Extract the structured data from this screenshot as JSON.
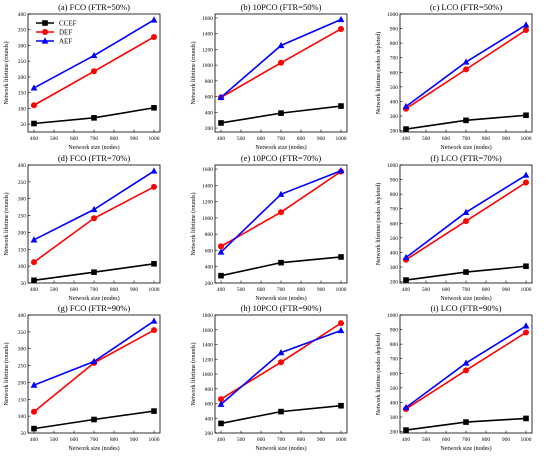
{
  "legend": {
    "entries": [
      {
        "name": "CCEF",
        "color": "#000000",
        "marker": "square"
      },
      {
        "name": "DEF",
        "color": "#ff0000",
        "marker": "circle"
      },
      {
        "name": "AEF",
        "color": "#0000ff",
        "marker": "triangle"
      }
    ],
    "placement": "top-left of panel (a)"
  },
  "chart_data": [
    {
      "type": "line",
      "title": "(a) FCO (FTR=50%)",
      "xlabel": "Network size (nodes)",
      "ylabel": "Network lifetime (rounds)",
      "x": [
        400,
        700,
        1000
      ],
      "xticks": [
        400,
        500,
        600,
        700,
        800,
        900,
        1000
      ],
      "ylim": [
        25,
        400
      ],
      "yticks": [
        50,
        100,
        150,
        200,
        250,
        300,
        350,
        400
      ],
      "series": [
        {
          "name": "CCEF",
          "values": [
            52,
            70,
            102
          ]
        },
        {
          "name": "DEF",
          "values": [
            110,
            218,
            327
          ]
        },
        {
          "name": "AEF",
          "values": [
            165,
            268,
            381
          ]
        }
      ]
    },
    {
      "type": "line",
      "title": "(b) 10PCO (FTR=50%)",
      "xlabel": "Network size (nodes)",
      "ylabel": "Network lifetime (rounds)",
      "x": [
        400,
        700,
        1000
      ],
      "xticks": [
        400,
        500,
        600,
        700,
        800,
        900,
        1000
      ],
      "ylim": [
        150,
        1650
      ],
      "yticks": [
        200,
        400,
        600,
        800,
        1000,
        1200,
        1400,
        1600
      ],
      "series": [
        {
          "name": "CCEF",
          "values": [
            265,
            390,
            480
          ]
        },
        {
          "name": "DEF",
          "values": [
            590,
            1030,
            1460
          ]
        },
        {
          "name": "AEF",
          "values": [
            590,
            1250,
            1580
          ]
        }
      ]
    },
    {
      "type": "line",
      "title": "(c) LCO (FTR=50%)",
      "xlabel": "Network size (nodes)",
      "ylabel": "Network lifetime (nodes depleted)",
      "x": [
        400,
        700,
        1000
      ],
      "xticks": [
        400,
        500,
        600,
        700,
        800,
        900,
        1000
      ],
      "ylim": [
        190,
        1000
      ],
      "yticks": [
        200,
        300,
        400,
        500,
        600,
        700,
        800,
        900,
        1000
      ],
      "series": [
        {
          "name": "CCEF",
          "values": [
            210,
            270,
            305
          ]
        },
        {
          "name": "DEF",
          "values": [
            350,
            620,
            890
          ]
        },
        {
          "name": "AEF",
          "values": [
            365,
            670,
            925
          ]
        }
      ]
    },
    {
      "type": "line",
      "title": "(d) FCO (FTR=70%)",
      "xlabel": "Network size (nodes)",
      "ylabel": "Network lifetime (rounds)",
      "x": [
        400,
        700,
        1000
      ],
      "xticks": [
        400,
        500,
        600,
        700,
        800,
        900,
        1000
      ],
      "ylim": [
        50,
        400
      ],
      "yticks": [
        50,
        100,
        150,
        200,
        250,
        300,
        350,
        400
      ],
      "series": [
        {
          "name": "CCEF",
          "values": [
            58,
            82,
            107
          ]
        },
        {
          "name": "DEF",
          "values": [
            112,
            242,
            335
          ]
        },
        {
          "name": "AEF",
          "values": [
            178,
            268,
            382
          ]
        }
      ]
    },
    {
      "type": "line",
      "title": "(e) 10PCO (FTR=70%)",
      "xlabel": "Network size (nodes)",
      "ylabel": "Network lifetime (rounds)",
      "x": [
        400,
        700,
        1000
      ],
      "xticks": [
        400,
        500,
        600,
        700,
        800,
        900,
        1000
      ],
      "ylim": [
        200,
        1650
      ],
      "yticks": [
        200,
        400,
        600,
        800,
        1000,
        1200,
        1400,
        1600
      ],
      "series": [
        {
          "name": "CCEF",
          "values": [
            290,
            450,
            520
          ]
        },
        {
          "name": "DEF",
          "values": [
            650,
            1070,
            1570
          ]
        },
        {
          "name": "AEF",
          "values": [
            580,
            1290,
            1580
          ]
        }
      ]
    },
    {
      "type": "line",
      "title": "(f) LCO (FTR=70%)",
      "xlabel": "Network size (nodes)",
      "ylabel": "Network lifetime (nodes depleted)",
      "x": [
        400,
        700,
        1000
      ],
      "xticks": [
        400,
        500,
        600,
        700,
        800,
        900,
        1000
      ],
      "ylim": [
        190,
        1000
      ],
      "yticks": [
        200,
        300,
        400,
        500,
        600,
        700,
        800,
        900,
        1000
      ],
      "series": [
        {
          "name": "CCEF",
          "values": [
            210,
            265,
            305
          ]
        },
        {
          "name": "DEF",
          "values": [
            350,
            615,
            880
          ]
        },
        {
          "name": "AEF",
          "values": [
            365,
            675,
            930
          ]
        }
      ]
    },
    {
      "type": "line",
      "title": "(g) FCO (FTR=90%)",
      "xlabel": "Network size (nodes)",
      "ylabel": "Network lifetime (rounds)",
      "x": [
        400,
        700,
        1000
      ],
      "xticks": [
        400,
        500,
        600,
        700,
        800,
        900,
        1000
      ],
      "ylim": [
        50,
        400
      ],
      "yticks": [
        50,
        100,
        150,
        200,
        250,
        300,
        350,
        400
      ],
      "series": [
        {
          "name": "CCEF",
          "values": [
            63,
            90,
            115
          ]
        },
        {
          "name": "DEF",
          "values": [
            113,
            258,
            355
          ]
        },
        {
          "name": "AEF",
          "values": [
            192,
            262,
            382
          ]
        }
      ]
    },
    {
      "type": "line",
      "title": "(h) 10PCO (FTR=90%)",
      "xlabel": "Network size (nodes)",
      "ylabel": "Network lifetime (rounds)",
      "x": [
        400,
        700,
        1000
      ],
      "xticks": [
        400,
        500,
        600,
        700,
        800,
        900,
        1000
      ],
      "ylim": [
        200,
        1800
      ],
      "yticks": [
        200,
        400,
        600,
        800,
        1000,
        1200,
        1400,
        1600,
        1800
      ],
      "series": [
        {
          "name": "CCEF",
          "values": [
            330,
            490,
            570
          ]
        },
        {
          "name": "DEF",
          "values": [
            660,
            1160,
            1690
          ]
        },
        {
          "name": "AEF",
          "values": [
            590,
            1290,
            1590
          ]
        }
      ]
    },
    {
      "type": "line",
      "title": "(i) LCO (FTR=90%)",
      "xlabel": "Network size (nodes)",
      "ylabel": "Network lifetime (nodes depleted)",
      "x": [
        400,
        700,
        1000
      ],
      "xticks": [
        400,
        500,
        600,
        700,
        800,
        900,
        1000
      ],
      "ylim": [
        190,
        1000
      ],
      "yticks": [
        200,
        300,
        400,
        500,
        600,
        700,
        800,
        900,
        1000
      ],
      "series": [
        {
          "name": "CCEF",
          "values": [
            210,
            265,
            290
          ]
        },
        {
          "name": "DEF",
          "values": [
            355,
            620,
            880
          ]
        },
        {
          "name": "AEF",
          "values": [
            365,
            670,
            925
          ]
        }
      ]
    }
  ]
}
